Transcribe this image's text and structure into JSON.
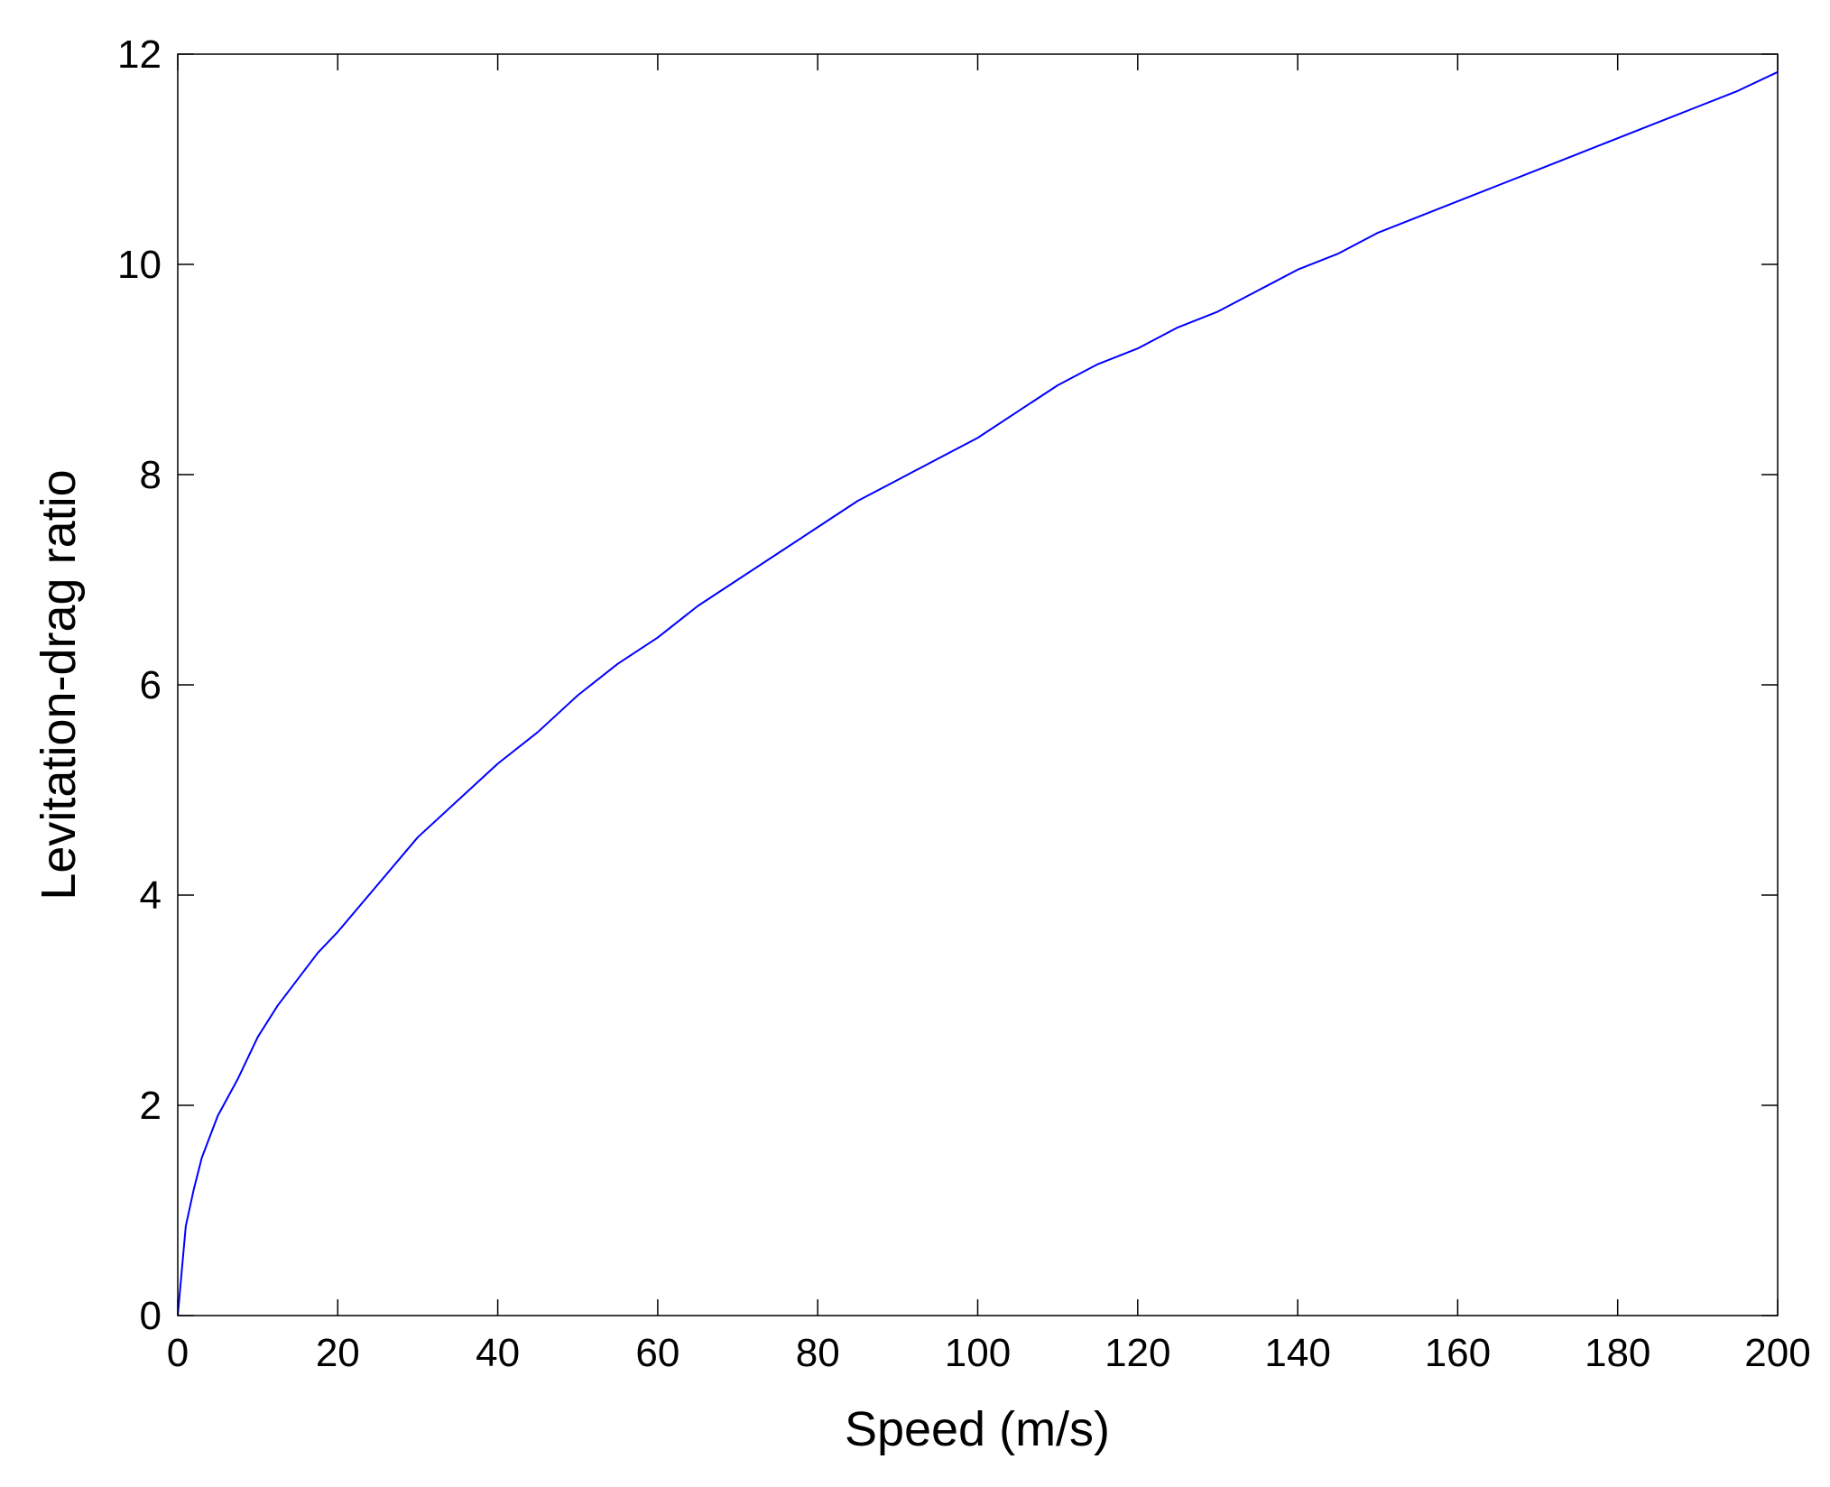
{
  "chart_data": {
    "type": "line",
    "title": "",
    "xlabel": "Speed (m/s)",
    "ylabel": "Levitation-drag ratio",
    "xlim": [
      0,
      200
    ],
    "ylim": [
      0,
      12
    ],
    "xticks": [
      0,
      20,
      40,
      60,
      80,
      100,
      120,
      140,
      160,
      180,
      200
    ],
    "yticks": [
      0,
      2,
      4,
      6,
      8,
      10,
      12
    ],
    "x_tick_labels": [
      "0",
      "20",
      "40",
      "60",
      "80",
      "100",
      "120",
      "140",
      "160",
      "180",
      "200"
    ],
    "y_tick_labels": [
      "0",
      "2",
      "4",
      "6",
      "8",
      "10",
      "12"
    ],
    "grid": false,
    "legend": "none",
    "series": [
      {
        "color": "#0000ff",
        "x": [
          0,
          1,
          2,
          3,
          5,
          7.5,
          10,
          12.5,
          15,
          17.5,
          20,
          25,
          30,
          35,
          40,
          45,
          50,
          55,
          60,
          65,
          70,
          75,
          80,
          85,
          90,
          95,
          100,
          105,
          110,
          115,
          120,
          125,
          130,
          135,
          140,
          145,
          150,
          155,
          160,
          165,
          170,
          175,
          180,
          185,
          190,
          195,
          200
        ],
        "y": [
          0,
          0.85,
          1.2,
          1.5,
          1.9,
          2.25,
          2.65,
          2.95,
          3.2,
          3.45,
          3.65,
          4.1,
          4.55,
          4.9,
          5.25,
          5.55,
          5.9,
          6.2,
          6.45,
          6.75,
          7.0,
          7.25,
          7.5,
          7.75,
          7.95,
          8.15,
          8.35,
          8.6,
          8.85,
          9.05,
          9.2,
          9.4,
          9.55,
          9.75,
          9.95,
          10.1,
          10.3,
          10.45,
          10.6,
          10.75,
          10.9,
          11.05,
          11.2,
          11.35,
          11.5,
          11.65,
          11.83
        ]
      }
    ]
  }
}
